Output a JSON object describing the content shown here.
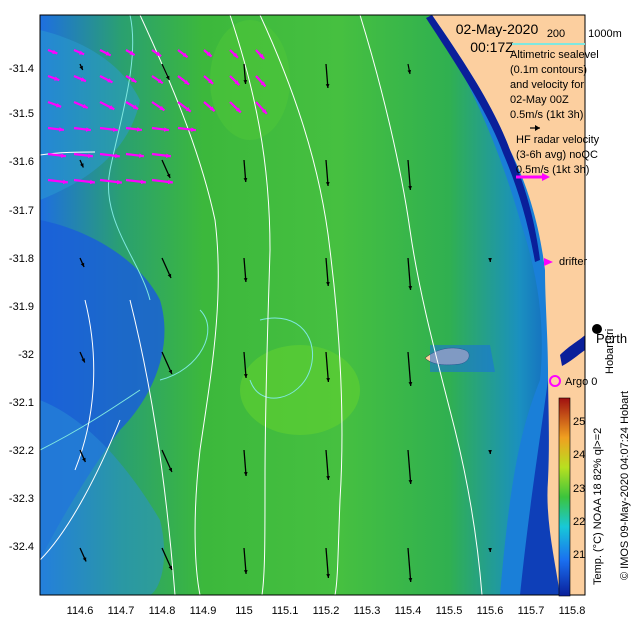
{
  "header": {
    "date": "02-May-2020",
    "time": "00:17Z",
    "isobath_label_1": "200",
    "isobath_label_2": "1000m"
  },
  "legend": {
    "altimetry_lines": [
      "Altimetric sealevel",
      "(0.1m contours)",
      "and velocity for",
      "02-May 00Z"
    ],
    "altimetry_scale": "0.5m/s (1kt 3h)",
    "hf_lines": [
      "HF radar velocity",
      "(3-6h avg) noQC"
    ],
    "hf_scale": "0.5m/s (1kt 3h)",
    "drifter_label": "drifter",
    "argo_label": "Argo 0",
    "perth_label": "Perth",
    "hobart_label": "Hobart tri"
  },
  "colorbar": {
    "ticks": [
      "25",
      "24",
      "23",
      "22",
      "21"
    ],
    "caption": "Temp. (°C) NOAA 18 82% ql>=2",
    "credit": "© IMOS 09-May-2020 04:07:24 Hobart"
  },
  "axes": {
    "y_ticks": [
      "-31.4",
      "-31.5",
      "-31.6",
      "-31.7",
      "-31.8",
      "-31.9",
      "-32",
      "-32.1",
      "-32.2",
      "-32.3",
      "-32.4"
    ],
    "x_ticks": [
      "114.6",
      "114.7",
      "114.8",
      "114.9",
      "115",
      "115.1",
      "115.2",
      "115.3",
      "115.4",
      "115.5",
      "115.6",
      "115.7",
      "115.8"
    ]
  },
  "colors": {
    "land": "#fccf9f",
    "hf_arrow": "#ff00ff",
    "alt_arrow": "#000000",
    "sst_warm": "#3cc43c",
    "sst_cool": "#1a4fe0",
    "deep_blue": "#0a1f9a"
  }
}
